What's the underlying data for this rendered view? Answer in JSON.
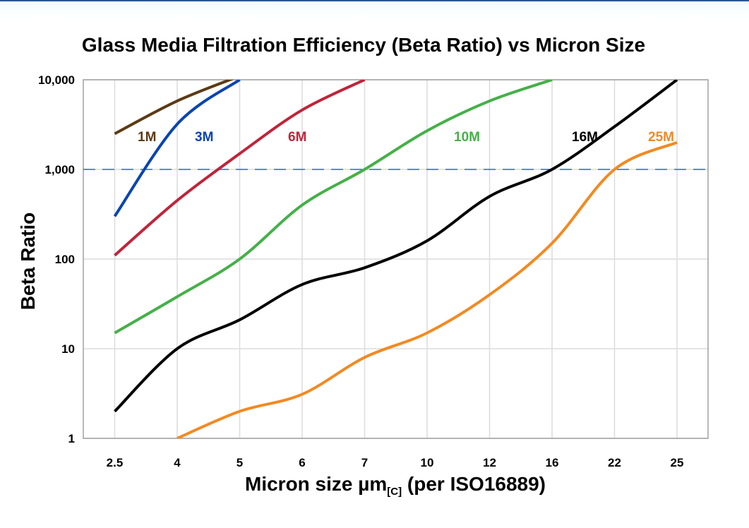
{
  "chart_data": {
    "type": "line",
    "title": "Glass Media Filtration Efficiency (Beta Ratio) vs Micron Size",
    "xlabel_main": "Micron size µm",
    "xlabel_sub": "[C]",
    "xlabel_tail": " (per ISO16889)",
    "ylabel": "Beta Ratio",
    "categories": [
      "2.5",
      "4",
      "5",
      "6",
      "7",
      "10",
      "12",
      "16",
      "22",
      "25"
    ],
    "yscale": "log",
    "ylim": [
      1,
      10000
    ],
    "yticks": [
      1,
      10,
      100,
      1000,
      10000
    ],
    "ytick_labels": [
      "1",
      "10",
      "100",
      "1,000",
      "10,000"
    ],
    "grid": true,
    "reference_line": {
      "y": 1000,
      "style": "dashed",
      "color": "#3c6bb0"
    },
    "series": [
      {
        "name": "1M",
        "color": "#5c3a14",
        "values": [
          2500,
          5800,
          11000,
          null,
          null,
          null,
          null,
          null,
          null,
          null
        ]
      },
      {
        "name": "3M",
        "color": "#0a45b0",
        "values": [
          300,
          3200,
          10000,
          null,
          null,
          null,
          null,
          null,
          null,
          null
        ]
      },
      {
        "name": "6M",
        "color": "#c0243a",
        "values": [
          110,
          450,
          1500,
          4600,
          10000,
          null,
          null,
          null,
          null,
          null
        ]
      },
      {
        "name": "10M",
        "color": "#45b048",
        "values": [
          15,
          38,
          100,
          400,
          1000,
          2700,
          5800,
          10000,
          null,
          null
        ]
      },
      {
        "name": "16M",
        "color": "#000000",
        "values": [
          2,
          10,
          21,
          52,
          80,
          160,
          500,
          1000,
          3000,
          10000
        ]
      },
      {
        "name": "25M",
        "color": "#f28a22",
        "values": [
          null,
          1,
          2,
          3.1,
          8,
          15,
          40,
          150,
          1000,
          2000
        ]
      }
    ]
  }
}
